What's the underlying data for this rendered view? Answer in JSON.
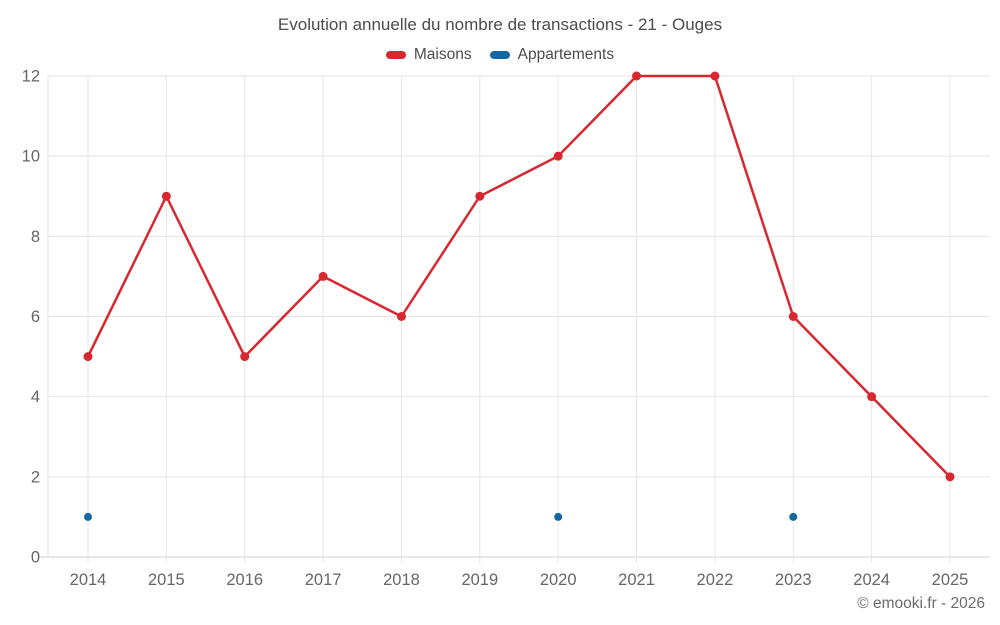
{
  "header": {
    "title": "Evolution annuelle du nombre de transactions - 21 - Ouges"
  },
  "legend": {
    "items": [
      {
        "label": "Maisons",
        "color": "#d7282f"
      },
      {
        "label": "Appartements",
        "color": "#1268a4"
      }
    ]
  },
  "footer": {
    "credit": "© emooki.fr - 2026"
  },
  "colors": {
    "grid": "#e5e5e5",
    "axis_line": "#d2d2d2",
    "tick_label": "#666666",
    "maisons": "#d7282f",
    "appartements": "#1268a4"
  },
  "chart_data": {
    "type": "line",
    "title": "Evolution annuelle du nombre de transactions - 21 - Ouges",
    "categories": [
      "2014",
      "2015",
      "2016",
      "2017",
      "2018",
      "2019",
      "2020",
      "2021",
      "2022",
      "2023",
      "2024",
      "2025"
    ],
    "series": [
      {
        "name": "Maisons",
        "color": "#d7282f",
        "show_line": true,
        "values": [
          5,
          9,
          5,
          7,
          6,
          9,
          10,
          12,
          12,
          6,
          4,
          2
        ]
      },
      {
        "name": "Appartements",
        "color": "#1268a4",
        "show_line": false,
        "values": [
          1,
          null,
          null,
          null,
          null,
          null,
          1,
          null,
          null,
          1,
          null,
          null
        ]
      }
    ],
    "xlabel": "",
    "ylabel": "",
    "ylim": [
      0,
      12
    ],
    "yticks": [
      0,
      2,
      4,
      6,
      8,
      10,
      12
    ],
    "grid": true,
    "legend_position": "top"
  }
}
